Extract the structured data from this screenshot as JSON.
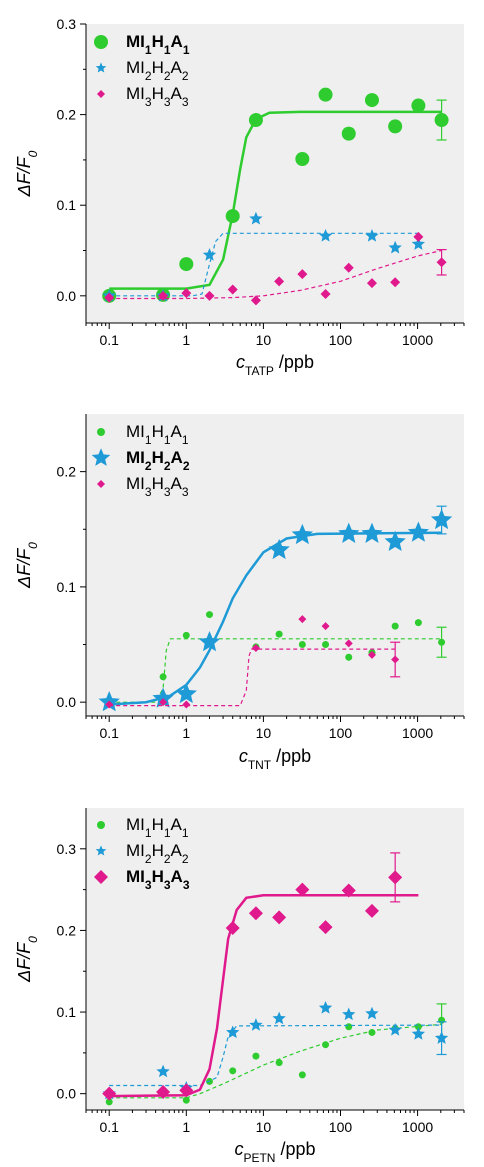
{
  "chart_data": [
    {
      "type": "scatter",
      "x_scale": "log",
      "xlim": [
        0.05,
        4000
      ],
      "ylim": [
        -0.03,
        0.3
      ],
      "grid": false,
      "legend_position": "top-left",
      "xlabel": {
        "main": "c",
        "sub": "TATP",
        "unit": " /ppb"
      },
      "ylabel": {
        "main": "ΔF/F",
        "sub": "0"
      },
      "x_ticks": [
        {
          "v": 0.1,
          "label": "0.1"
        },
        {
          "v": 1,
          "label": "1"
        },
        {
          "v": 10,
          "label": "10"
        },
        {
          "v": 100,
          "label": "100"
        },
        {
          "v": 1000,
          "label": "1000"
        }
      ],
      "y_ticks": [
        {
          "v": 0,
          "label": "0.0"
        },
        {
          "v": 0.1,
          "label": "0.1"
        },
        {
          "v": 0.2,
          "label": "0.2"
        },
        {
          "v": 0.3,
          "label": "0.3"
        }
      ],
      "series": [
        {
          "name": "MI1H1A1",
          "label_parts": [
            "MI",
            "1",
            "H",
            "1",
            "A",
            "1"
          ],
          "bold": true,
          "color": "#2ecc2e",
          "marker": "circle",
          "size": 7,
          "fit": "solid",
          "points": [
            [
              0.1,
              0.0
            ],
            [
              0.5,
              0.001
            ],
            [
              1,
              0.035
            ],
            [
              4,
              0.088
            ],
            [
              8,
              0.194
            ],
            [
              32,
              0.151
            ],
            [
              64,
              0.222
            ],
            [
              128,
              0.179
            ],
            [
              256,
              0.216
            ],
            [
              512,
              0.187
            ],
            [
              1024,
              0.21
            ],
            [
              2048,
              0.194
            ]
          ],
          "error_bar": {
            "x": 2048,
            "y": 0.194,
            "err": 0.022
          },
          "fit_curve": [
            [
              0.1,
              0.008
            ],
            [
              1,
              0.008
            ],
            [
              2,
              0.012
            ],
            [
              3,
              0.04
            ],
            [
              4,
              0.09
            ],
            [
              5,
              0.14
            ],
            [
              6,
              0.175
            ],
            [
              8,
              0.195
            ],
            [
              12,
              0.202
            ],
            [
              30,
              0.203
            ],
            [
              2048,
              0.203
            ]
          ]
        },
        {
          "name": "MI2H2A2",
          "label_parts": [
            "MI",
            "2",
            "H",
            "2",
            "A",
            "2"
          ],
          "bold": false,
          "color": "#1e9ad6",
          "marker": "star",
          "size": 5,
          "fit": "dashed",
          "points": [
            [
              0.1,
              0.0
            ],
            [
              0.5,
              0.0
            ],
            [
              2,
              0.045
            ],
            [
              8,
              0.085
            ],
            [
              64,
              0.066
            ],
            [
              256,
              0.066
            ],
            [
              512,
              0.053
            ],
            [
              1024,
              0.057
            ]
          ],
          "fit_curve": [
            [
              0.1,
              0.0
            ],
            [
              1.2,
              0.0
            ],
            [
              1.6,
              0.002
            ],
            [
              2,
              0.035
            ],
            [
              2.4,
              0.06
            ],
            [
              3,
              0.069
            ],
            [
              1024,
              0.069
            ]
          ]
        },
        {
          "name": "MI3H3A3",
          "label_parts": [
            "MI",
            "3",
            "H",
            "3",
            "A",
            "3"
          ],
          "bold": false,
          "color": "#e0198c",
          "marker": "diamond",
          "size": 5,
          "fit": "dashed",
          "points": [
            [
              0.1,
              -0.002
            ],
            [
              0.5,
              0.0
            ],
            [
              1,
              0.003
            ],
            [
              2,
              0.0
            ],
            [
              4,
              0.007
            ],
            [
              8,
              -0.005
            ],
            [
              16,
              0.016
            ],
            [
              32,
              0.024
            ],
            [
              64,
              0.002
            ],
            [
              128,
              0.031
            ],
            [
              256,
              0.014
            ],
            [
              512,
              0.015
            ],
            [
              1024,
              0.065
            ],
            [
              2048,
              0.037
            ]
          ],
          "error_bar": {
            "x": 2048,
            "y": 0.037,
            "err": 0.014
          },
          "fit_curve": [
            [
              0.1,
              -0.003
            ],
            [
              1,
              -0.003
            ],
            [
              4,
              -0.002
            ],
            [
              10,
              0.0
            ],
            [
              30,
              0.006
            ],
            [
              100,
              0.016
            ],
            [
              300,
              0.03
            ],
            [
              1000,
              0.044
            ],
            [
              2048,
              0.05
            ]
          ]
        }
      ]
    },
    {
      "type": "scatter",
      "x_scale": "log",
      "xlim": [
        0.05,
        4000
      ],
      "ylim": [
        -0.012,
        0.25
      ],
      "grid": false,
      "legend_position": "top-left",
      "xlabel": {
        "main": "c",
        "sub": "TNT",
        "unit": " /ppb"
      },
      "ylabel": {
        "main": "ΔF/F",
        "sub": "0"
      },
      "x_ticks": [
        {
          "v": 0.1,
          "label": "0.1"
        },
        {
          "v": 1,
          "label": "1"
        },
        {
          "v": 10,
          "label": "10"
        },
        {
          "v": 100,
          "label": "100"
        },
        {
          "v": 1000,
          "label": "1000"
        }
      ],
      "y_ticks": [
        {
          "v": 0,
          "label": "0.0"
        },
        {
          "v": 0.1,
          "label": "0.1"
        },
        {
          "v": 0.2,
          "label": "0.2"
        }
      ],
      "series": [
        {
          "name": "MI1H1A1",
          "label_parts": [
            "MI",
            "1",
            "H",
            "1",
            "A",
            "1"
          ],
          "bold": false,
          "color": "#2ecc2e",
          "marker": "circle",
          "size": 3.5,
          "fit": "dashed",
          "points": [
            [
              0.1,
              0.0
            ],
            [
              0.5,
              0.022
            ],
            [
              1,
              0.058
            ],
            [
              2,
              0.076
            ],
            [
              8,
              0.048
            ],
            [
              16,
              0.059
            ],
            [
              32,
              0.05
            ],
            [
              64,
              0.05
            ],
            [
              128,
              0.039
            ],
            [
              256,
              0.043
            ],
            [
              512,
              0.066
            ],
            [
              1024,
              0.069
            ],
            [
              2048,
              0.052
            ]
          ],
          "error_bar": {
            "x": 2048,
            "y": 0.052,
            "err": 0.013
          },
          "fit_curve": [
            [
              0.1,
              0.0
            ],
            [
              0.4,
              0.0
            ],
            [
              0.5,
              0.012
            ],
            [
              0.55,
              0.045
            ],
            [
              0.62,
              0.055
            ],
            [
              2048,
              0.055
            ]
          ]
        },
        {
          "name": "MI2H2A2",
          "label_parts": [
            "MI",
            "2",
            "H",
            "2",
            "A",
            "2"
          ],
          "bold": true,
          "color": "#1e9ad6",
          "marker": "star",
          "size": 8,
          "fit": "solid",
          "points": [
            [
              0.1,
              0.0
            ],
            [
              0.5,
              0.003
            ],
            [
              1,
              0.007
            ],
            [
              2,
              0.052
            ],
            [
              16,
              0.132
            ],
            [
              32,
              0.145
            ],
            [
              128,
              0.146
            ],
            [
              256,
              0.146
            ],
            [
              512,
              0.139
            ],
            [
              1024,
              0.147
            ],
            [
              2048,
              0.158
            ]
          ],
          "error_bar": {
            "x": 2048,
            "y": 0.158,
            "err": 0.012
          },
          "fit_curve": [
            [
              0.1,
              -0.002
            ],
            [
              0.3,
              0.0
            ],
            [
              0.6,
              0.005
            ],
            [
              1,
              0.015
            ],
            [
              1.5,
              0.03
            ],
            [
              2,
              0.045
            ],
            [
              3,
              0.07
            ],
            [
              4,
              0.09
            ],
            [
              6,
              0.11
            ],
            [
              10,
              0.13
            ],
            [
              20,
              0.142
            ],
            [
              50,
              0.146
            ],
            [
              2048,
              0.147
            ]
          ]
        },
        {
          "name": "MI3H3A3",
          "label_parts": [
            "MI",
            "3",
            "H",
            "3",
            "A",
            "3"
          ],
          "bold": false,
          "color": "#e0198c",
          "marker": "diamond",
          "size": 4,
          "fit": "dashed",
          "points": [
            [
              0.1,
              -0.002
            ],
            [
              0.5,
              0.0
            ],
            [
              1,
              -0.002
            ],
            [
              8,
              0.047
            ],
            [
              32,
              0.072
            ],
            [
              64,
              0.066
            ],
            [
              128,
              0.051
            ],
            [
              256,
              0.041
            ],
            [
              512,
              0.037
            ]
          ],
          "error_bar": {
            "x": 512,
            "y": 0.037,
            "err": 0.015
          },
          "fit_curve": [
            [
              0.1,
              -0.003
            ],
            [
              5,
              -0.003
            ],
            [
              6,
              0.01
            ],
            [
              6.5,
              0.04
            ],
            [
              7,
              0.046
            ],
            [
              512,
              0.046
            ]
          ]
        }
      ]
    },
    {
      "type": "scatter",
      "x_scale": "log",
      "xlim": [
        0.05,
        4000
      ],
      "ylim": [
        -0.02,
        0.35
      ],
      "grid": false,
      "legend_position": "top-left",
      "xlabel": {
        "main": "c",
        "sub": "PETN",
        "unit": " /ppb"
      },
      "ylabel": {
        "main": "ΔF/F",
        "sub": "0"
      },
      "x_ticks": [
        {
          "v": 0.1,
          "label": "0.1"
        },
        {
          "v": 1,
          "label": "1"
        },
        {
          "v": 10,
          "label": "10"
        },
        {
          "v": 100,
          "label": "100"
        },
        {
          "v": 1000,
          "label": "1000"
        }
      ],
      "y_ticks": [
        {
          "v": 0,
          "label": "0.0"
        },
        {
          "v": 0.1,
          "label": "0.1"
        },
        {
          "v": 0.2,
          "label": "0.2"
        },
        {
          "v": 0.3,
          "label": "0.3"
        }
      ],
      "series": [
        {
          "name": "MI1H1A1",
          "label_parts": [
            "MI",
            "1",
            "H",
            "1",
            "A",
            "1"
          ],
          "bold": false,
          "color": "#2ecc2e",
          "marker": "circle",
          "size": 3.5,
          "fit": "dashed",
          "points": [
            [
              0.1,
              -0.01
            ],
            [
              1,
              -0.008
            ],
            [
              2,
              0.015
            ],
            [
              4,
              0.028
            ],
            [
              8,
              0.046
            ],
            [
              16,
              0.038
            ],
            [
              32,
              0.023
            ],
            [
              64,
              0.06
            ],
            [
              128,
              0.082
            ],
            [
              256,
              0.075
            ],
            [
              512,
              0.08
            ],
            [
              1024,
              0.082
            ],
            [
              2048,
              0.09
            ]
          ],
          "error_bar": {
            "x": 2048,
            "y": 0.09,
            "err": 0.02
          },
          "fit_curve": [
            [
              0.1,
              -0.005
            ],
            [
              1,
              -0.005
            ],
            [
              1.5,
              0.0
            ],
            [
              3,
              0.012
            ],
            [
              10,
              0.035
            ],
            [
              30,
              0.052
            ],
            [
              100,
              0.068
            ],
            [
              300,
              0.078
            ],
            [
              2048,
              0.085
            ]
          ]
        },
        {
          "name": "MI2H2A2",
          "label_parts": [
            "MI",
            "2",
            "H",
            "2",
            "A",
            "2"
          ],
          "bold": false,
          "color": "#1e9ad6",
          "marker": "star",
          "size": 5,
          "fit": "dashed",
          "points": [
            [
              0.1,
              0.0
            ],
            [
              0.5,
              0.027
            ],
            [
              1,
              0.007
            ],
            [
              4,
              0.075
            ],
            [
              8,
              0.084
            ],
            [
              16,
              0.092
            ],
            [
              64,
              0.105
            ],
            [
              128,
              0.097
            ],
            [
              256,
              0.098
            ],
            [
              512,
              0.078
            ],
            [
              1024,
              0.073
            ],
            [
              2048,
              0.068
            ]
          ],
          "error_bar": {
            "x": 2048,
            "y": 0.068,
            "err": 0.02
          },
          "fit_curve": [
            [
              0.1,
              0.01
            ],
            [
              1.5,
              0.01
            ],
            [
              2.5,
              0.02
            ],
            [
              3,
              0.045
            ],
            [
              3.5,
              0.07
            ],
            [
              4.5,
              0.083
            ],
            [
              2048,
              0.084
            ]
          ]
        },
        {
          "name": "MI3H3A3",
          "label_parts": [
            "MI",
            "3",
            "H",
            "3",
            "A",
            "3"
          ],
          "bold": true,
          "color": "#e0198c",
          "marker": "diamond",
          "size": 7,
          "fit": "solid",
          "points": [
            [
              0.1,
              0.0
            ],
            [
              0.5,
              0.002
            ],
            [
              1,
              0.004
            ],
            [
              4,
              0.203
            ],
            [
              8,
              0.221
            ],
            [
              16,
              0.216
            ],
            [
              32,
              0.25
            ],
            [
              64,
              0.204
            ],
            [
              128,
              0.249
            ],
            [
              256,
              0.224
            ],
            [
              512,
              0.265
            ]
          ],
          "error_bar": {
            "x": 512,
            "y": 0.265,
            "err": 0.03
          },
          "fit_curve": [
            [
              0.1,
              -0.003
            ],
            [
              1,
              -0.002
            ],
            [
              1.5,
              0.005
            ],
            [
              2,
              0.03
            ],
            [
              2.5,
              0.08
            ],
            [
              3,
              0.14
            ],
            [
              3.5,
              0.19
            ],
            [
              4.5,
              0.225
            ],
            [
              6,
              0.24
            ],
            [
              10,
              0.243
            ],
            [
              1024,
              0.243
            ]
          ]
        }
      ]
    }
  ]
}
